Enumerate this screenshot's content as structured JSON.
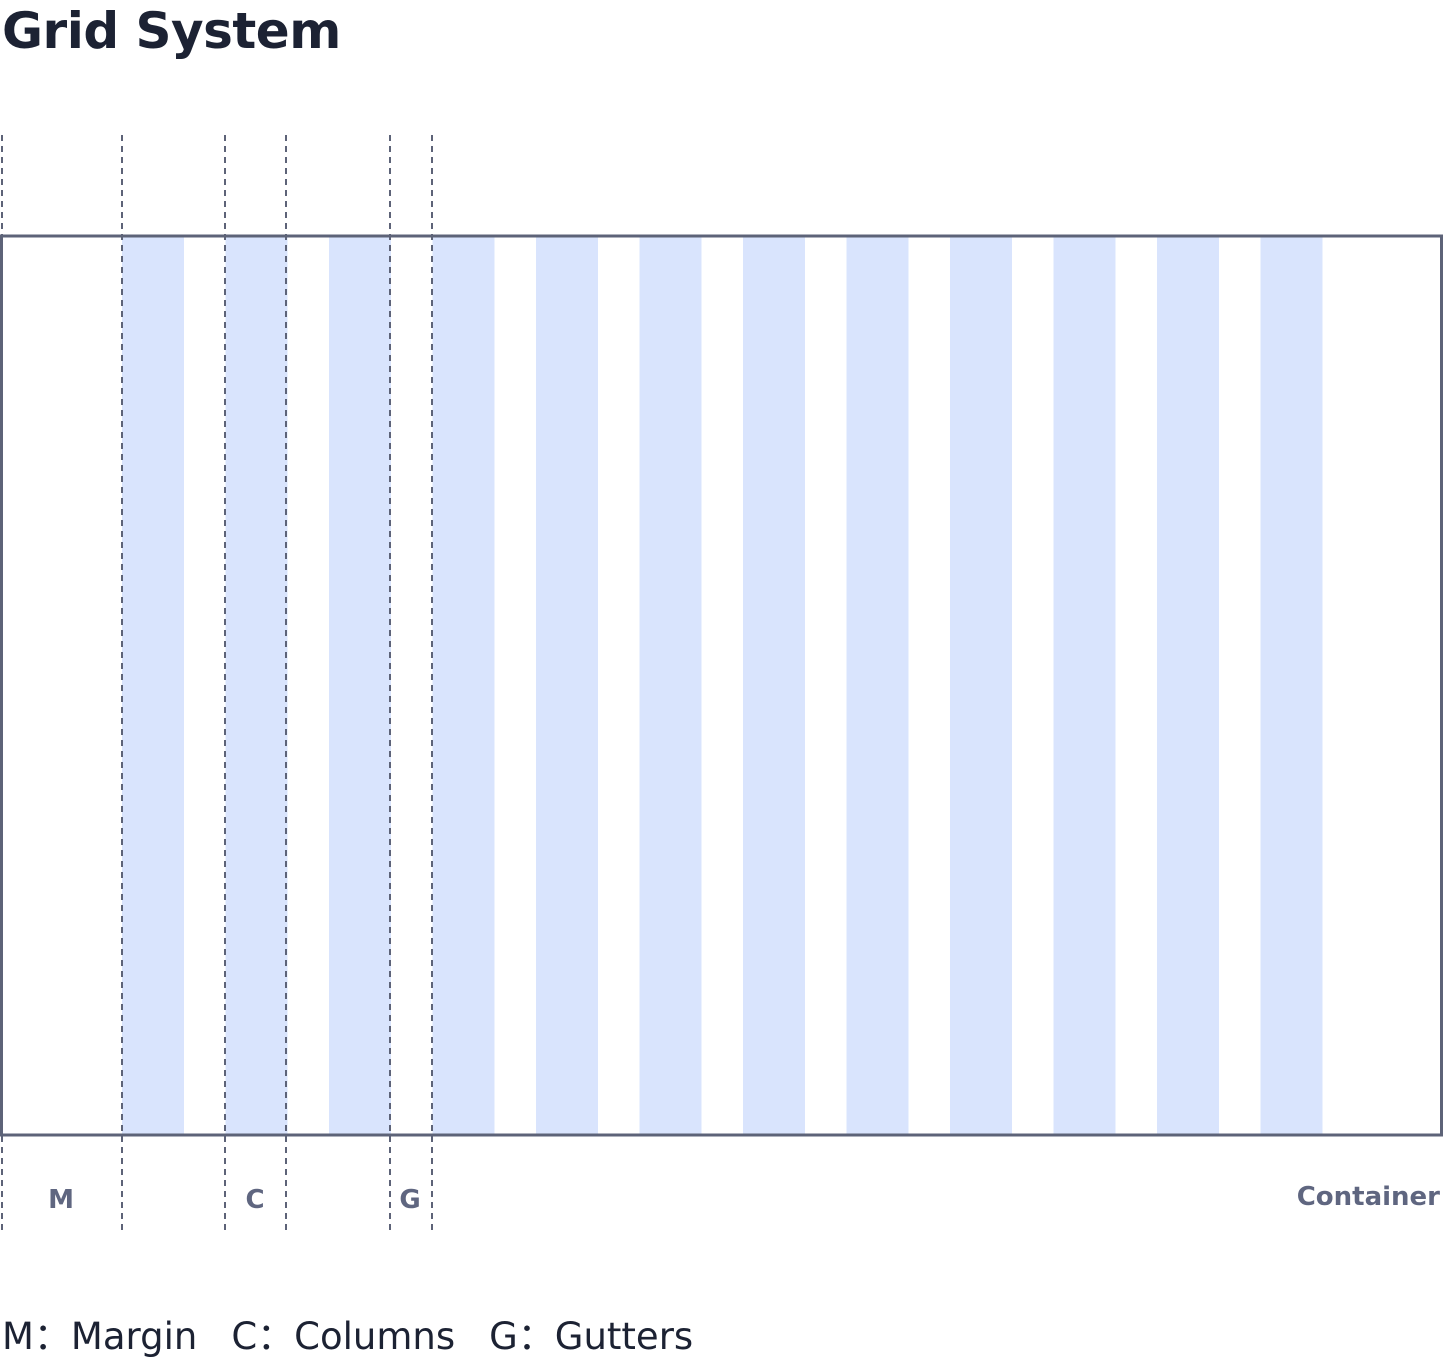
{
  "title": "Grid System",
  "diagram": {
    "column_count": 12,
    "labels": {
      "margin": "M",
      "columns": "C",
      "gutters": "G",
      "container": "Container"
    },
    "colors": {
      "column_fill": "#d9e4fd",
      "border": "#5d6378",
      "label": "#5f6680",
      "text": "#1c2233"
    }
  },
  "legend": [
    {
      "text": "M：Margin"
    },
    {
      "text": "C：Columns"
    },
    {
      "text": "G：Gutters"
    }
  ]
}
